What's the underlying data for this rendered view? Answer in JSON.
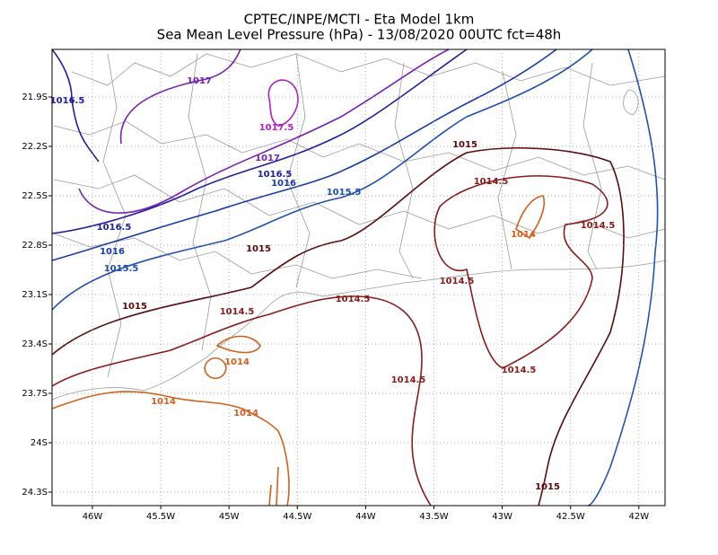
{
  "title": "CPTEC/INPE/MCTI -  Eta Model 1km",
  "subtitle": "Sea Mean Level Pressure (hPa) - 13/08/2020 00UTC fct=48h",
  "x_ticks": [
    "46W",
    "45.5W",
    "45W",
    "44.5W",
    "44W",
    "43.5W",
    "43W",
    "42.5W",
    "42W"
  ],
  "y_ticks": [
    "21.9S",
    "22.2S",
    "22.5S",
    "22.8S",
    "23.1S",
    "23.4S",
    "23.7S",
    "24S",
    "24.3S"
  ],
  "contour_labels": [
    "1016.5",
    "1017",
    "1017.5",
    "1017",
    "1016.5",
    "1016",
    "1015.5",
    "1016.5",
    "1016",
    "1015.5",
    "1015",
    "1014.5",
    "1014",
    "1014.5",
    "1015",
    "1015",
    "1014.5",
    "1014.5",
    "1014.5",
    "1014",
    "1014.5",
    "1014.5",
    "1014",
    "1014",
    "1015"
  ]
}
